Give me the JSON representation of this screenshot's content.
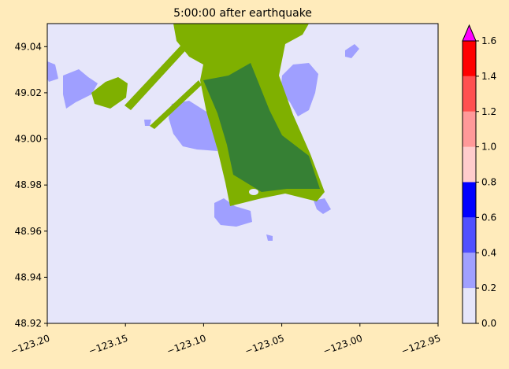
{
  "chart_data": {
    "type": "map",
    "title": "5:00:00 after earthquake",
    "xlim": [
      -123.2,
      -122.95
    ],
    "ylim": [
      48.92,
      49.05
    ],
    "xticks": [
      {
        "value": -123.2,
        "label": "−123.20"
      },
      {
        "value": -123.15,
        "label": "−123.15"
      },
      {
        "value": -123.1,
        "label": "−123.10"
      },
      {
        "value": -123.05,
        "label": "−123.05"
      },
      {
        "value": -123.0,
        "label": "−123.00"
      },
      {
        "value": -122.95,
        "label": "−122.95"
      }
    ],
    "yticks": [
      48.92,
      48.94,
      48.96,
      48.98,
      {
        "value": 49.0,
        "label": "49.00"
      },
      49.02,
      49.04
    ],
    "colorbar": {
      "lim": [
        0,
        1.6
      ],
      "ticks": [
        {
          "value": 0,
          "label": "0.0"
        },
        0.2,
        0.4,
        0.6,
        0.8,
        {
          "value": 1.0,
          "label": "1.0"
        },
        1.2,
        1.4,
        1.6
      ],
      "colors": [
        "#e6e6fa",
        "#a0a0ff",
        "#5050ff",
        "#0000ff",
        "#ffcccc",
        "#ff9999",
        "#ff5050",
        "#ff0000"
      ],
      "extend_color": "#ff00ff"
    }
  }
}
